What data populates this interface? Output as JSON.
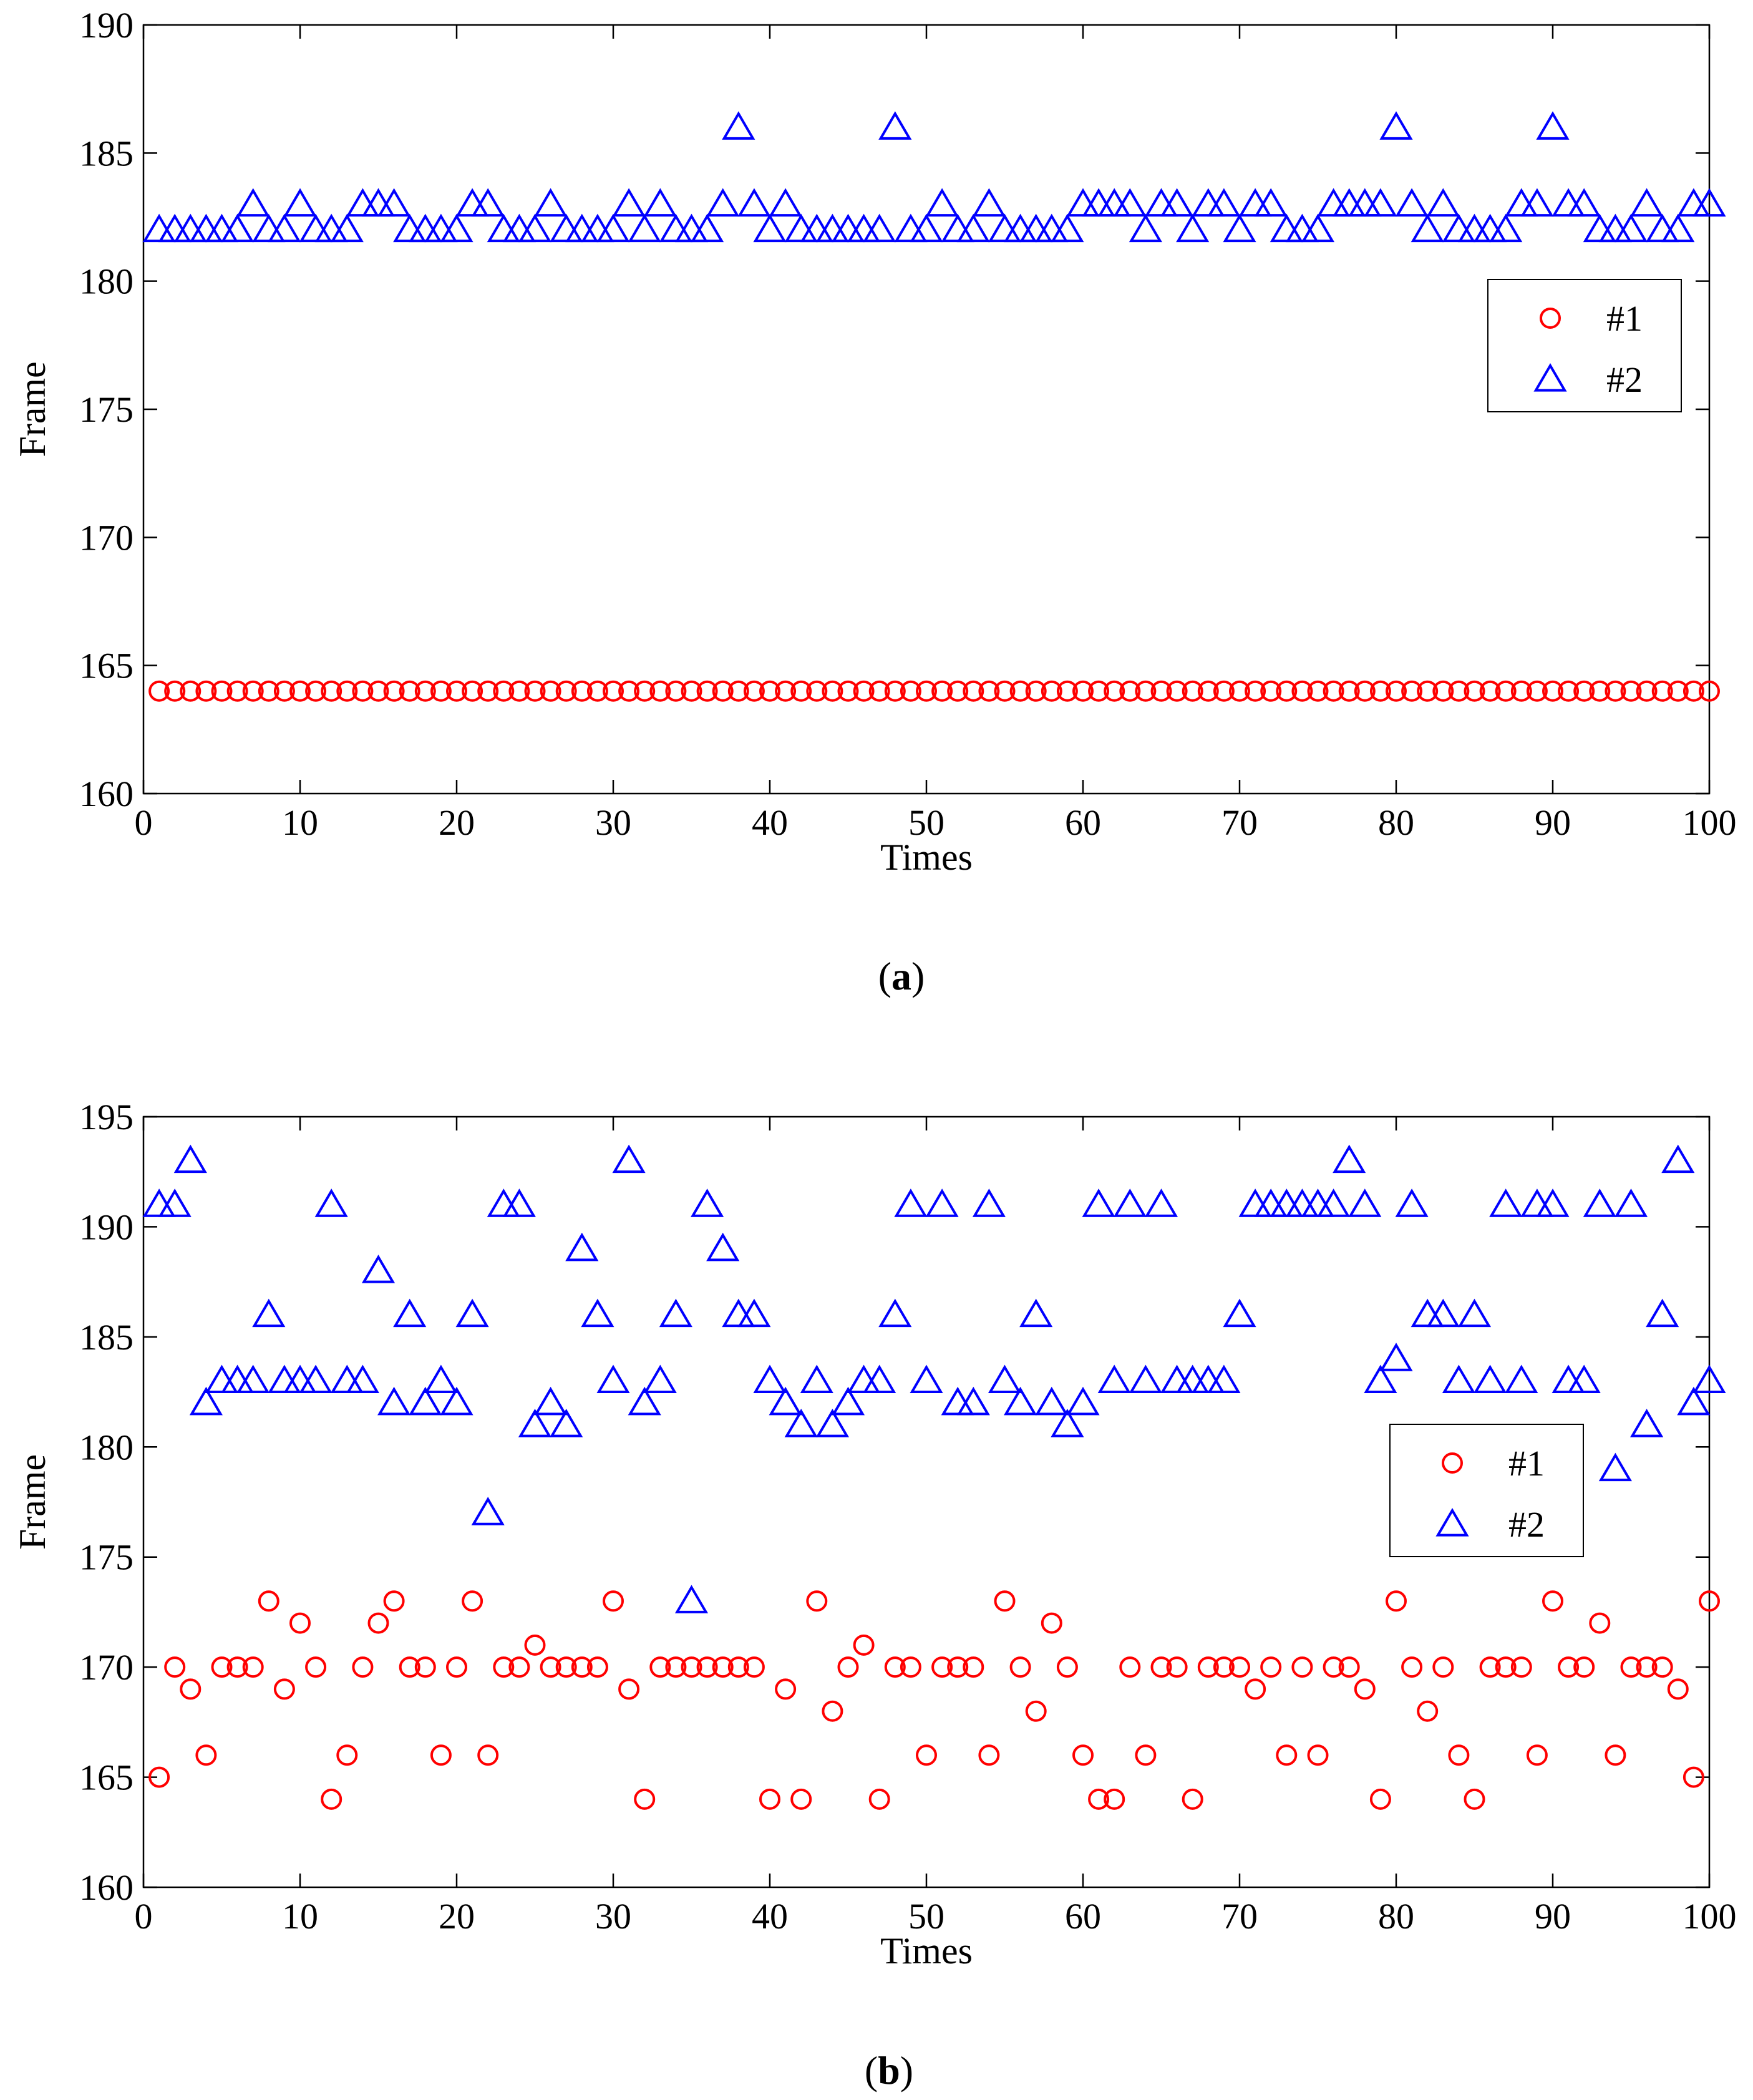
{
  "chart_data": [
    {
      "type": "scatter",
      "panel": "a",
      "caption_open": "(",
      "caption_letter": "a",
      "caption_close": ")",
      "xlabel": "Times",
      "ylabel": "Frame",
      "xlim": [
        0,
        100
      ],
      "ylim": [
        160,
        190
      ],
      "xticks": [
        0,
        10,
        20,
        30,
        40,
        50,
        60,
        70,
        80,
        90,
        100
      ],
      "yticks": [
        160,
        165,
        170,
        175,
        180,
        185,
        190
      ],
      "legend_position": "right",
      "series": [
        {
          "name": "#1",
          "marker": "circle",
          "color": "#ff0000",
          "x": [
            1,
            2,
            3,
            4,
            5,
            6,
            7,
            8,
            9,
            10,
            11,
            12,
            13,
            14,
            15,
            16,
            17,
            18,
            19,
            20,
            21,
            22,
            23,
            24,
            25,
            26,
            27,
            28,
            29,
            30,
            31,
            32,
            33,
            34,
            35,
            36,
            37,
            38,
            39,
            40,
            41,
            42,
            43,
            44,
            45,
            46,
            47,
            48,
            49,
            50,
            51,
            52,
            53,
            54,
            55,
            56,
            57,
            58,
            59,
            60,
            61,
            62,
            63,
            64,
            65,
            66,
            67,
            68,
            69,
            70,
            71,
            72,
            73,
            74,
            75,
            76,
            77,
            78,
            79,
            80,
            81,
            82,
            83,
            84,
            85,
            86,
            87,
            88,
            89,
            90,
            91,
            92,
            93,
            94,
            95,
            96,
            97,
            98,
            99,
            100
          ],
          "y": [
            164,
            164,
            164,
            164,
            164,
            164,
            164,
            164,
            164,
            164,
            164,
            164,
            164,
            164,
            164,
            164,
            164,
            164,
            164,
            164,
            164,
            164,
            164,
            164,
            164,
            164,
            164,
            164,
            164,
            164,
            164,
            164,
            164,
            164,
            164,
            164,
            164,
            164,
            164,
            164,
            164,
            164,
            164,
            164,
            164,
            164,
            164,
            164,
            164,
            164,
            164,
            164,
            164,
            164,
            164,
            164,
            164,
            164,
            164,
            164,
            164,
            164,
            164,
            164,
            164,
            164,
            164,
            164,
            164,
            164,
            164,
            164,
            164,
            164,
            164,
            164,
            164,
            164,
            164,
            164,
            164,
            164,
            164,
            164,
            164,
            164,
            164,
            164,
            164,
            164,
            164,
            164,
            164,
            164,
            164,
            164,
            164,
            164,
            164,
            164
          ]
        },
        {
          "name": "#2",
          "marker": "triangle",
          "color": "#0000ff",
          "x": [
            1,
            2,
            3,
            4,
            5,
            6,
            7,
            8,
            9,
            10,
            11,
            12,
            13,
            14,
            15,
            16,
            17,
            18,
            19,
            20,
            21,
            22,
            23,
            24,
            25,
            26,
            27,
            28,
            29,
            30,
            31,
            32,
            33,
            34,
            35,
            36,
            37,
            38,
            39,
            40,
            41,
            42,
            43,
            44,
            45,
            46,
            47,
            48,
            49,
            50,
            51,
            52,
            53,
            54,
            55,
            56,
            57,
            58,
            59,
            60,
            61,
            62,
            63,
            64,
            65,
            66,
            67,
            68,
            69,
            70,
            71,
            72,
            73,
            74,
            75,
            76,
            77,
            78,
            79,
            80,
            81,
            82,
            83,
            84,
            85,
            86,
            87,
            88,
            89,
            90,
            91,
            92,
            93,
            94,
            95,
            96,
            97,
            98,
            99,
            100
          ],
          "y": [
            182,
            182,
            182,
            182,
            182,
            182,
            183,
            182,
            182,
            183,
            182,
            182,
            182,
            183,
            183,
            183,
            182,
            182,
            182,
            182,
            183,
            183,
            182,
            182,
            182,
            183,
            182,
            182,
            182,
            182,
            183,
            182,
            183,
            182,
            182,
            182,
            183,
            186,
            183,
            182,
            183,
            182,
            182,
            182,
            182,
            182,
            182,
            186,
            182,
            182,
            183,
            182,
            182,
            183,
            182,
            182,
            182,
            182,
            182,
            183,
            183,
            183,
            183,
            182,
            183,
            183,
            182,
            183,
            183,
            182,
            183,
            183,
            182,
            182,
            182,
            183,
            183,
            183,
            183,
            186,
            183,
            182,
            183,
            182,
            182,
            182,
            182,
            183,
            183,
            186,
            183,
            183,
            182,
            182,
            182,
            183,
            182,
            182,
            183,
            183
          ]
        }
      ]
    },
    {
      "type": "scatter",
      "panel": "b",
      "caption_open": "(",
      "caption_letter": "b",
      "caption_close": ")",
      "xlabel": "Times",
      "ylabel": "Frame",
      "xlim": [
        0,
        100
      ],
      "ylim": [
        160,
        195
      ],
      "xticks": [
        0,
        10,
        20,
        30,
        40,
        50,
        60,
        70,
        80,
        90,
        100
      ],
      "yticks": [
        160,
        165,
        170,
        175,
        180,
        185,
        190,
        195
      ],
      "legend_position": "right",
      "series": [
        {
          "name": "#1",
          "marker": "circle",
          "color": "#ff0000",
          "x": [
            1,
            2,
            3,
            4,
            5,
            6,
            7,
            8,
            9,
            10,
            11,
            12,
            13,
            14,
            15,
            16,
            17,
            18,
            19,
            20,
            21,
            22,
            23,
            24,
            25,
            26,
            27,
            28,
            29,
            30,
            31,
            32,
            33,
            34,
            35,
            36,
            37,
            38,
            39,
            40,
            41,
            42,
            43,
            44,
            45,
            46,
            47,
            48,
            49,
            50,
            51,
            52,
            53,
            54,
            55,
            56,
            57,
            58,
            59,
            60,
            61,
            62,
            63,
            64,
            65,
            66,
            67,
            68,
            69,
            70,
            71,
            72,
            73,
            74,
            75,
            76,
            77,
            78,
            79,
            80,
            81,
            82,
            83,
            84,
            85,
            86,
            87,
            88,
            89,
            90,
            91,
            92,
            93,
            94,
            95,
            96,
            97,
            98,
            99,
            100
          ],
          "y": [
            165,
            170,
            169,
            166,
            170,
            170,
            170,
            173,
            169,
            172,
            170,
            164,
            166,
            170,
            172,
            173,
            170,
            170,
            166,
            170,
            173,
            166,
            170,
            170,
            171,
            170,
            170,
            170,
            170,
            173,
            169,
            164,
            170,
            170,
            170,
            170,
            170,
            170,
            170,
            164,
            169,
            164,
            173,
            168,
            170,
            171,
            164,
            170,
            170,
            166,
            170,
            170,
            170,
            166,
            173,
            170,
            168,
            172,
            170,
            166,
            164,
            164,
            170,
            166,
            170,
            170,
            164,
            170,
            170,
            170,
            169,
            170,
            166,
            170,
            166,
            170,
            170,
            169,
            164,
            173,
            170,
            168,
            170,
            166,
            164,
            170,
            170,
            170,
            166,
            173,
            170,
            170,
            172,
            166,
            170,
            170,
            170,
            169,
            165,
            173
          ]
        },
        {
          "name": "#2",
          "marker": "triangle",
          "color": "#0000ff",
          "x": [
            1,
            2,
            3,
            4,
            5,
            6,
            7,
            8,
            9,
            10,
            11,
            12,
            13,
            14,
            15,
            16,
            17,
            18,
            19,
            20,
            21,
            22,
            23,
            24,
            25,
            26,
            27,
            28,
            29,
            30,
            31,
            32,
            33,
            34,
            35,
            36,
            37,
            38,
            39,
            40,
            41,
            42,
            43,
            44,
            45,
            46,
            47,
            48,
            49,
            50,
            51,
            52,
            53,
            54,
            55,
            56,
            57,
            58,
            59,
            60,
            61,
            62,
            63,
            64,
            65,
            66,
            67,
            68,
            69,
            70,
            71,
            72,
            73,
            74,
            75,
            76,
            77,
            78,
            79,
            80,
            81,
            82,
            83,
            84,
            85,
            86,
            87,
            88,
            89,
            90,
            91,
            92,
            93,
            94,
            95,
            96,
            97,
            98,
            99,
            100
          ],
          "y": [
            191,
            191,
            193,
            182,
            183,
            183,
            183,
            186,
            183,
            183,
            183,
            191,
            183,
            183,
            188,
            182,
            186,
            182,
            183,
            182,
            186,
            177,
            191,
            191,
            181,
            182,
            181,
            189,
            186,
            183,
            193,
            182,
            183,
            186,
            173,
            191,
            189,
            186,
            186,
            183,
            182,
            181,
            183,
            181,
            182,
            183,
            183,
            186,
            191,
            183,
            191,
            182,
            182,
            191,
            183,
            182,
            186,
            182,
            181,
            182,
            191,
            183,
            191,
            183,
            191,
            183,
            183,
            183,
            183,
            186,
            191,
            191,
            191,
            191,
            191,
            191,
            193,
            191,
            183,
            184,
            191,
            186,
            186,
            183,
            186,
            183,
            191,
            183,
            191,
            191,
            183,
            183,
            191,
            179,
            191,
            181,
            186,
            193,
            182,
            183
          ]
        }
      ]
    }
  ]
}
